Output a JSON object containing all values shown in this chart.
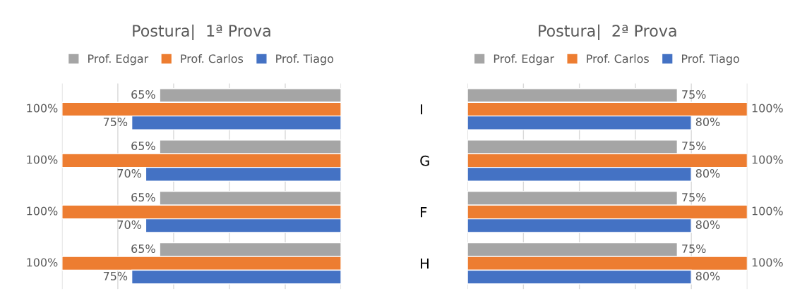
{
  "chart_data": [
    {
      "type": "bar",
      "orientation": "horizontal",
      "title": "Postura|  1ª Prova",
      "categories": [
        "I",
        "G",
        "F",
        "H"
      ],
      "xlim": [
        100,
        0
      ],
      "xticks": [
        {
          "value": 100,
          "label": null
        },
        {
          "value": 80,
          "label": null
        },
        {
          "value": 60,
          "label": null
        },
        {
          "value": 40,
          "label": null
        },
        {
          "value": 20,
          "label": null
        },
        {
          "value": 0,
          "label": null
        }
      ],
      "grid": "x",
      "legend": "top",
      "tick_labels": "y",
      "series": [
        {
          "name": "Prof. Edgar",
          "color": "#a5a5a5",
          "values": [
            65,
            65,
            65,
            65
          ],
          "value_labels": [
            "65%",
            "65%",
            "65%",
            "65%"
          ]
        },
        {
          "name": "Prof. Carlos",
          "color": "#ed7d31",
          "values": [
            100,
            100,
            100,
            100
          ],
          "value_labels": [
            "100%",
            "100%",
            "100%",
            "100%"
          ]
        },
        {
          "name": "Prof. Tiago",
          "color": "#4472c4",
          "values": [
            75,
            70,
            70,
            75
          ],
          "value_labels": [
            "75%",
            "70%",
            "70%",
            "75%"
          ]
        }
      ]
    },
    {
      "type": "bar",
      "orientation": "horizontal",
      "title": "Postura|  2ª Prova",
      "categories": [
        null,
        null,
        null,
        null
      ],
      "xlim": [
        0,
        100
      ],
      "xticks": [
        {
          "value": 0,
          "label": null
        },
        {
          "value": 20,
          "label": null
        },
        {
          "value": 40,
          "label": null
        },
        {
          "value": 60,
          "label": null
        },
        {
          "value": 80,
          "label": null
        },
        {
          "value": 100,
          "label": null
        }
      ],
      "grid": "x",
      "legend": "top",
      "tick_labels": "y",
      "series": [
        {
          "name": "Prof. Edgar",
          "color": "#a5a5a5",
          "values": [
            75,
            75,
            75,
            75
          ],
          "value_labels": [
            "75%",
            "75%",
            "75%",
            "75%"
          ]
        },
        {
          "name": "Prof. Carlos",
          "color": "#ed7d31",
          "values": [
            100,
            100,
            100,
            100
          ],
          "value_labels": [
            "100%",
            "100%",
            "100%",
            "100%"
          ]
        },
        {
          "name": "Prof. Tiago",
          "color": "#4472c4",
          "values": [
            80,
            80,
            80,
            80
          ],
          "value_labels": [
            "80%",
            "80%",
            "80%",
            "80%"
          ]
        }
      ]
    }
  ]
}
